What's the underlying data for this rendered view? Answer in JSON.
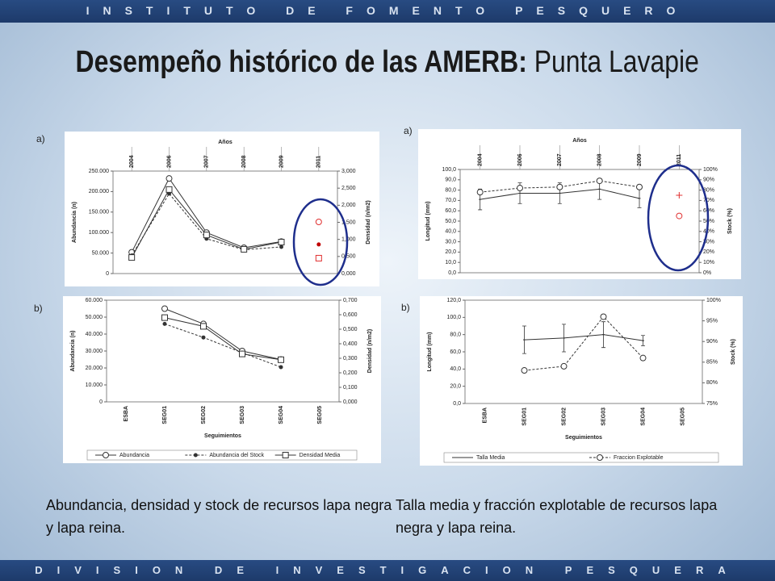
{
  "header": "INSTITUTO DE FOMENTO PESQUERO",
  "footer": "DIVISION DE INVESTIGACION PESQUERA",
  "title": {
    "bold": "Desempeño histórico de las AMERB:",
    "regular": "Punta Lavapie"
  },
  "captions": [
    "Abundancia, densidad y stock de recursos lapa negra y lapa reina.",
    "Talla media y fracción explotable de recursos lapa negra y lapa reina."
  ],
  "chart_data": [
    {
      "type": "line",
      "panel_label": "a)",
      "x_title": "Años",
      "y_title": "Abundancia (n)",
      "y2_title": "Densidad (n/m2)",
      "categories": [
        "2004",
        "2006",
        "2007",
        "2008",
        "2009",
        "2011"
      ],
      "ylim": [
        0,
        250000
      ],
      "yticks": [
        0,
        {
          "value": 50000,
          "label": "50.000"
        },
        {
          "value": 100000,
          "label": "100.000"
        },
        {
          "value": 150000,
          "label": "150.000"
        },
        {
          "value": 200000,
          "label": "200.000"
        },
        {
          "value": 250000,
          "label": "250.000"
        }
      ],
      "y2lim": [
        0,
        3
      ],
      "y2ticks": [
        {
          "value": 0,
          "label": "0,000"
        },
        {
          "value": 0.5,
          "label": "0,500"
        },
        {
          "value": 1,
          "label": "1,000"
        },
        {
          "value": 1.5,
          "label": "1,500"
        },
        {
          "value": 2,
          "label": "2,000"
        },
        {
          "value": 2.5,
          "label": "2,500"
        },
        {
          "value": 3,
          "label": "3,000"
        }
      ],
      "series": [
        {
          "color": "#333333",
          "marker": "circle",
          "values": [
            52000,
            232000,
            100000,
            63000,
            78000,
            null
          ]
        },
        {
          "color": "#333333",
          "marker": "dot",
          "dash": true,
          "values": [
            44000,
            195000,
            85000,
            58000,
            65000,
            null
          ]
        },
        {
          "color": "#333333",
          "marker": "square",
          "axis": "y2",
          "values": [
            0.47,
            2.46,
            1.13,
            0.71,
            0.92,
            null
          ]
        },
        {
          "color": "#e03030",
          "marker": "circle",
          "line": false,
          "values": [
            null,
            null,
            null,
            null,
            null,
            126000
          ]
        },
        {
          "color": "#c00000",
          "marker": "dot",
          "line": false,
          "values": [
            null,
            null,
            null,
            null,
            null,
            71000
          ]
        },
        {
          "color": "#e03030",
          "marker": "square",
          "line": false,
          "axis": "y2",
          "values": [
            null,
            null,
            null,
            null,
            null,
            0.45
          ]
        }
      ]
    },
    {
      "type": "line",
      "panel_label": "a)",
      "x_title": "Años",
      "y_title": "Longitud (mm)",
      "y2_title": "Stock (%)",
      "categories": [
        "2004",
        "2006",
        "2007",
        "2008",
        "2009",
        "2011"
      ],
      "ylim": [
        0,
        100
      ],
      "yticks": [
        {
          "value": 0,
          "label": "0,0"
        },
        {
          "value": 10,
          "label": "10,0"
        },
        {
          "value": 20,
          "label": "20,0"
        },
        {
          "value": 30,
          "label": "30,0"
        },
        {
          "value": 40,
          "label": "40,0"
        },
        {
          "value": 50,
          "label": "50,0"
        },
        {
          "value": 60,
          "label": "60,0"
        },
        {
          "value": 70,
          "label": "70,0"
        },
        {
          "value": 80,
          "label": "80,0"
        },
        {
          "value": 90,
          "label": "90,0"
        },
        {
          "value": 100,
          "label": "100,0"
        }
      ],
      "y2lim": [
        0,
        100
      ],
      "y2ticks": [
        {
          "value": 0,
          "label": "0%"
        },
        {
          "value": 10,
          "label": "10%"
        },
        {
          "value": 20,
          "label": "20%"
        },
        {
          "value": 30,
          "label": "30%"
        },
        {
          "value": 40,
          "label": "40%"
        },
        {
          "value": 50,
          "label": "50%"
        },
        {
          "value": 60,
          "label": "60%"
        },
        {
          "value": 70,
          "label": "70%"
        },
        {
          "value": 80,
          "label": "80%"
        },
        {
          "value": 90,
          "label": "90%"
        },
        {
          "value": 100,
          "label": "100%"
        }
      ],
      "series": [
        {
          "color": "#333333",
          "marker": "none",
          "values": [
            71,
            77,
            77,
            81,
            72,
            null
          ],
          "errors": [
            10,
            10,
            10,
            10,
            9,
            null
          ]
        },
        {
          "color": "#333333",
          "marker": "circle",
          "dash": true,
          "axis": "y2",
          "values": [
            78,
            82,
            83,
            89,
            83,
            null
          ]
        },
        {
          "color": "#e03030",
          "marker": "plus",
          "line": false,
          "values": [
            null,
            null,
            null,
            null,
            null,
            75
          ]
        },
        {
          "color": "#e03030",
          "marker": "circle",
          "line": false,
          "axis": "y2",
          "values": [
            null,
            null,
            null,
            null,
            null,
            55
          ]
        }
      ]
    },
    {
      "type": "line",
      "panel_label": "b)",
      "x_title": "Seguimientos",
      "y_title": "Abundancia (n)",
      "y2_title": "Densidad (n/m2)",
      "categories": [
        "ESBA",
        "SEG01",
        "SEG02",
        "SEG03",
        "SEG04",
        "SEG05"
      ],
      "ylim": [
        0,
        60000
      ],
      "yticks": [
        0,
        {
          "value": 10000,
          "label": "10.000"
        },
        {
          "value": 20000,
          "label": "20.000"
        },
        {
          "value": 30000,
          "label": "30.000"
        },
        {
          "value": 40000,
          "label": "40.000"
        },
        {
          "value": 50000,
          "label": "50.000"
        },
        {
          "value": 60000,
          "label": "60.000"
        }
      ],
      "y2lim": [
        0,
        0.7
      ],
      "y2ticks": [
        {
          "value": 0,
          "label": "0,000"
        },
        {
          "value": 0.1,
          "label": "0,100"
        },
        {
          "value": 0.2,
          "label": "0,200"
        },
        {
          "value": 0.3,
          "label": "0,300"
        },
        {
          "value": 0.4,
          "label": "0,400"
        },
        {
          "value": 0.5,
          "label": "0,500"
        },
        {
          "value": 0.6,
          "label": "0,600"
        },
        {
          "value": 0.7,
          "label": "0,700"
        }
      ],
      "series": [
        {
          "name": "Abundancia",
          "color": "#333333",
          "marker": "circle",
          "values": [
            null,
            55000,
            46000,
            30000,
            25000,
            null
          ]
        },
        {
          "name": "Abundancia del Stock",
          "color": "#333333",
          "marker": "dot",
          "dash": true,
          "values": [
            null,
            46000,
            38000,
            29000,
            20500,
            null
          ]
        },
        {
          "name": "Densidad Media",
          "color": "#333333",
          "marker": "square",
          "axis": "y2",
          "values": [
            null,
            0.58,
            0.52,
            0.33,
            0.29,
            null
          ]
        }
      ]
    },
    {
      "type": "line",
      "panel_label": "b)",
      "x_title": "Seguimientos",
      "y_title": "Longitud (mm)",
      "y2_title": "Stock (%)",
      "categories": [
        "ESBA",
        "SEG01",
        "SEG02",
        "SEG03",
        "SEG04",
        "SEG05"
      ],
      "ylim": [
        0,
        120
      ],
      "yticks": [
        {
          "value": 0,
          "label": "0,0"
        },
        {
          "value": 20,
          "label": "20,0"
        },
        {
          "value": 40,
          "label": "40,0"
        },
        {
          "value": 60,
          "label": "60,0"
        },
        {
          "value": 80,
          "label": "80,0"
        },
        {
          "value": 100,
          "label": "100,0"
        },
        {
          "value": 120,
          "label": "120,0"
        }
      ],
      "y2lim": [
        75,
        100
      ],
      "y2ticks": [
        {
          "value": 75,
          "label": "75%"
        },
        {
          "value": 80,
          "label": "80%"
        },
        {
          "value": 85,
          "label": "85%"
        },
        {
          "value": 90,
          "label": "90%"
        },
        {
          "value": 95,
          "label": "95%"
        },
        {
          "value": 100,
          "label": "100%"
        }
      ],
      "series": [
        {
          "name": "Talla Media",
          "color": "#333333",
          "marker": "none",
          "values": [
            null,
            74,
            76,
            80,
            73,
            null
          ],
          "errors": [
            null,
            16,
            16,
            15,
            6,
            null
          ]
        },
        {
          "name": "Fraccion Explotable",
          "color": "#333333",
          "marker": "circle",
          "dash": true,
          "axis": "y2",
          "values": [
            null,
            83,
            84,
            96,
            86,
            null
          ]
        }
      ]
    }
  ]
}
